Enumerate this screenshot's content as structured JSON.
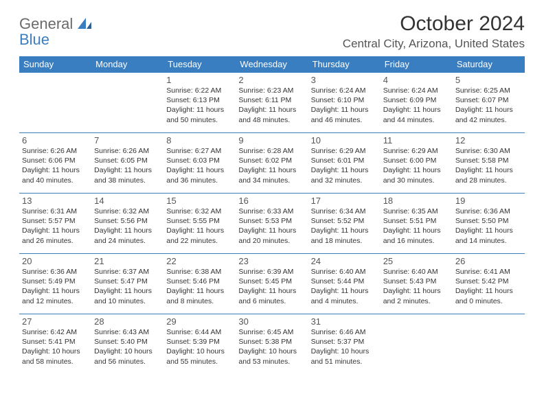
{
  "logo": {
    "word1": "General",
    "word2": "Blue"
  },
  "title": "October 2024",
  "location": "Central City, Arizona, United States",
  "colors": {
    "header_bg": "#3a7ec2",
    "header_text": "#ffffff",
    "border": "#3a7ec2",
    "logo_gray": "#6a6a6a",
    "logo_blue": "#3a7ec2"
  },
  "dow": [
    "Sunday",
    "Monday",
    "Tuesday",
    "Wednesday",
    "Thursday",
    "Friday",
    "Saturday"
  ],
  "weeks": [
    [
      {
        "n": "",
        "lines": []
      },
      {
        "n": "",
        "lines": []
      },
      {
        "n": "1",
        "lines": [
          "Sunrise: 6:22 AM",
          "Sunset: 6:13 PM",
          "Daylight: 11 hours and 50 minutes."
        ]
      },
      {
        "n": "2",
        "lines": [
          "Sunrise: 6:23 AM",
          "Sunset: 6:11 PM",
          "Daylight: 11 hours and 48 minutes."
        ]
      },
      {
        "n": "3",
        "lines": [
          "Sunrise: 6:24 AM",
          "Sunset: 6:10 PM",
          "Daylight: 11 hours and 46 minutes."
        ]
      },
      {
        "n": "4",
        "lines": [
          "Sunrise: 6:24 AM",
          "Sunset: 6:09 PM",
          "Daylight: 11 hours and 44 minutes."
        ]
      },
      {
        "n": "5",
        "lines": [
          "Sunrise: 6:25 AM",
          "Sunset: 6:07 PM",
          "Daylight: 11 hours and 42 minutes."
        ]
      }
    ],
    [
      {
        "n": "6",
        "lines": [
          "Sunrise: 6:26 AM",
          "Sunset: 6:06 PM",
          "Daylight: 11 hours and 40 minutes."
        ]
      },
      {
        "n": "7",
        "lines": [
          "Sunrise: 6:26 AM",
          "Sunset: 6:05 PM",
          "Daylight: 11 hours and 38 minutes."
        ]
      },
      {
        "n": "8",
        "lines": [
          "Sunrise: 6:27 AM",
          "Sunset: 6:03 PM",
          "Daylight: 11 hours and 36 minutes."
        ]
      },
      {
        "n": "9",
        "lines": [
          "Sunrise: 6:28 AM",
          "Sunset: 6:02 PM",
          "Daylight: 11 hours and 34 minutes."
        ]
      },
      {
        "n": "10",
        "lines": [
          "Sunrise: 6:29 AM",
          "Sunset: 6:01 PM",
          "Daylight: 11 hours and 32 minutes."
        ]
      },
      {
        "n": "11",
        "lines": [
          "Sunrise: 6:29 AM",
          "Sunset: 6:00 PM",
          "Daylight: 11 hours and 30 minutes."
        ]
      },
      {
        "n": "12",
        "lines": [
          "Sunrise: 6:30 AM",
          "Sunset: 5:58 PM",
          "Daylight: 11 hours and 28 minutes."
        ]
      }
    ],
    [
      {
        "n": "13",
        "lines": [
          "Sunrise: 6:31 AM",
          "Sunset: 5:57 PM",
          "Daylight: 11 hours and 26 minutes."
        ]
      },
      {
        "n": "14",
        "lines": [
          "Sunrise: 6:32 AM",
          "Sunset: 5:56 PM",
          "Daylight: 11 hours and 24 minutes."
        ]
      },
      {
        "n": "15",
        "lines": [
          "Sunrise: 6:32 AM",
          "Sunset: 5:55 PM",
          "Daylight: 11 hours and 22 minutes."
        ]
      },
      {
        "n": "16",
        "lines": [
          "Sunrise: 6:33 AM",
          "Sunset: 5:53 PM",
          "Daylight: 11 hours and 20 minutes."
        ]
      },
      {
        "n": "17",
        "lines": [
          "Sunrise: 6:34 AM",
          "Sunset: 5:52 PM",
          "Daylight: 11 hours and 18 minutes."
        ]
      },
      {
        "n": "18",
        "lines": [
          "Sunrise: 6:35 AM",
          "Sunset: 5:51 PM",
          "Daylight: 11 hours and 16 minutes."
        ]
      },
      {
        "n": "19",
        "lines": [
          "Sunrise: 6:36 AM",
          "Sunset: 5:50 PM",
          "Daylight: 11 hours and 14 minutes."
        ]
      }
    ],
    [
      {
        "n": "20",
        "lines": [
          "Sunrise: 6:36 AM",
          "Sunset: 5:49 PM",
          "Daylight: 11 hours and 12 minutes."
        ]
      },
      {
        "n": "21",
        "lines": [
          "Sunrise: 6:37 AM",
          "Sunset: 5:47 PM",
          "Daylight: 11 hours and 10 minutes."
        ]
      },
      {
        "n": "22",
        "lines": [
          "Sunrise: 6:38 AM",
          "Sunset: 5:46 PM",
          "Daylight: 11 hours and 8 minutes."
        ]
      },
      {
        "n": "23",
        "lines": [
          "Sunrise: 6:39 AM",
          "Sunset: 5:45 PM",
          "Daylight: 11 hours and 6 minutes."
        ]
      },
      {
        "n": "24",
        "lines": [
          "Sunrise: 6:40 AM",
          "Sunset: 5:44 PM",
          "Daylight: 11 hours and 4 minutes."
        ]
      },
      {
        "n": "25",
        "lines": [
          "Sunrise: 6:40 AM",
          "Sunset: 5:43 PM",
          "Daylight: 11 hours and 2 minutes."
        ]
      },
      {
        "n": "26",
        "lines": [
          "Sunrise: 6:41 AM",
          "Sunset: 5:42 PM",
          "Daylight: 11 hours and 0 minutes."
        ]
      }
    ],
    [
      {
        "n": "27",
        "lines": [
          "Sunrise: 6:42 AM",
          "Sunset: 5:41 PM",
          "Daylight: 10 hours and 58 minutes."
        ]
      },
      {
        "n": "28",
        "lines": [
          "Sunrise: 6:43 AM",
          "Sunset: 5:40 PM",
          "Daylight: 10 hours and 56 minutes."
        ]
      },
      {
        "n": "29",
        "lines": [
          "Sunrise: 6:44 AM",
          "Sunset: 5:39 PM",
          "Daylight: 10 hours and 55 minutes."
        ]
      },
      {
        "n": "30",
        "lines": [
          "Sunrise: 6:45 AM",
          "Sunset: 5:38 PM",
          "Daylight: 10 hours and 53 minutes."
        ]
      },
      {
        "n": "31",
        "lines": [
          "Sunrise: 6:46 AM",
          "Sunset: 5:37 PM",
          "Daylight: 10 hours and 51 minutes."
        ]
      },
      {
        "n": "",
        "lines": []
      },
      {
        "n": "",
        "lines": []
      }
    ]
  ]
}
